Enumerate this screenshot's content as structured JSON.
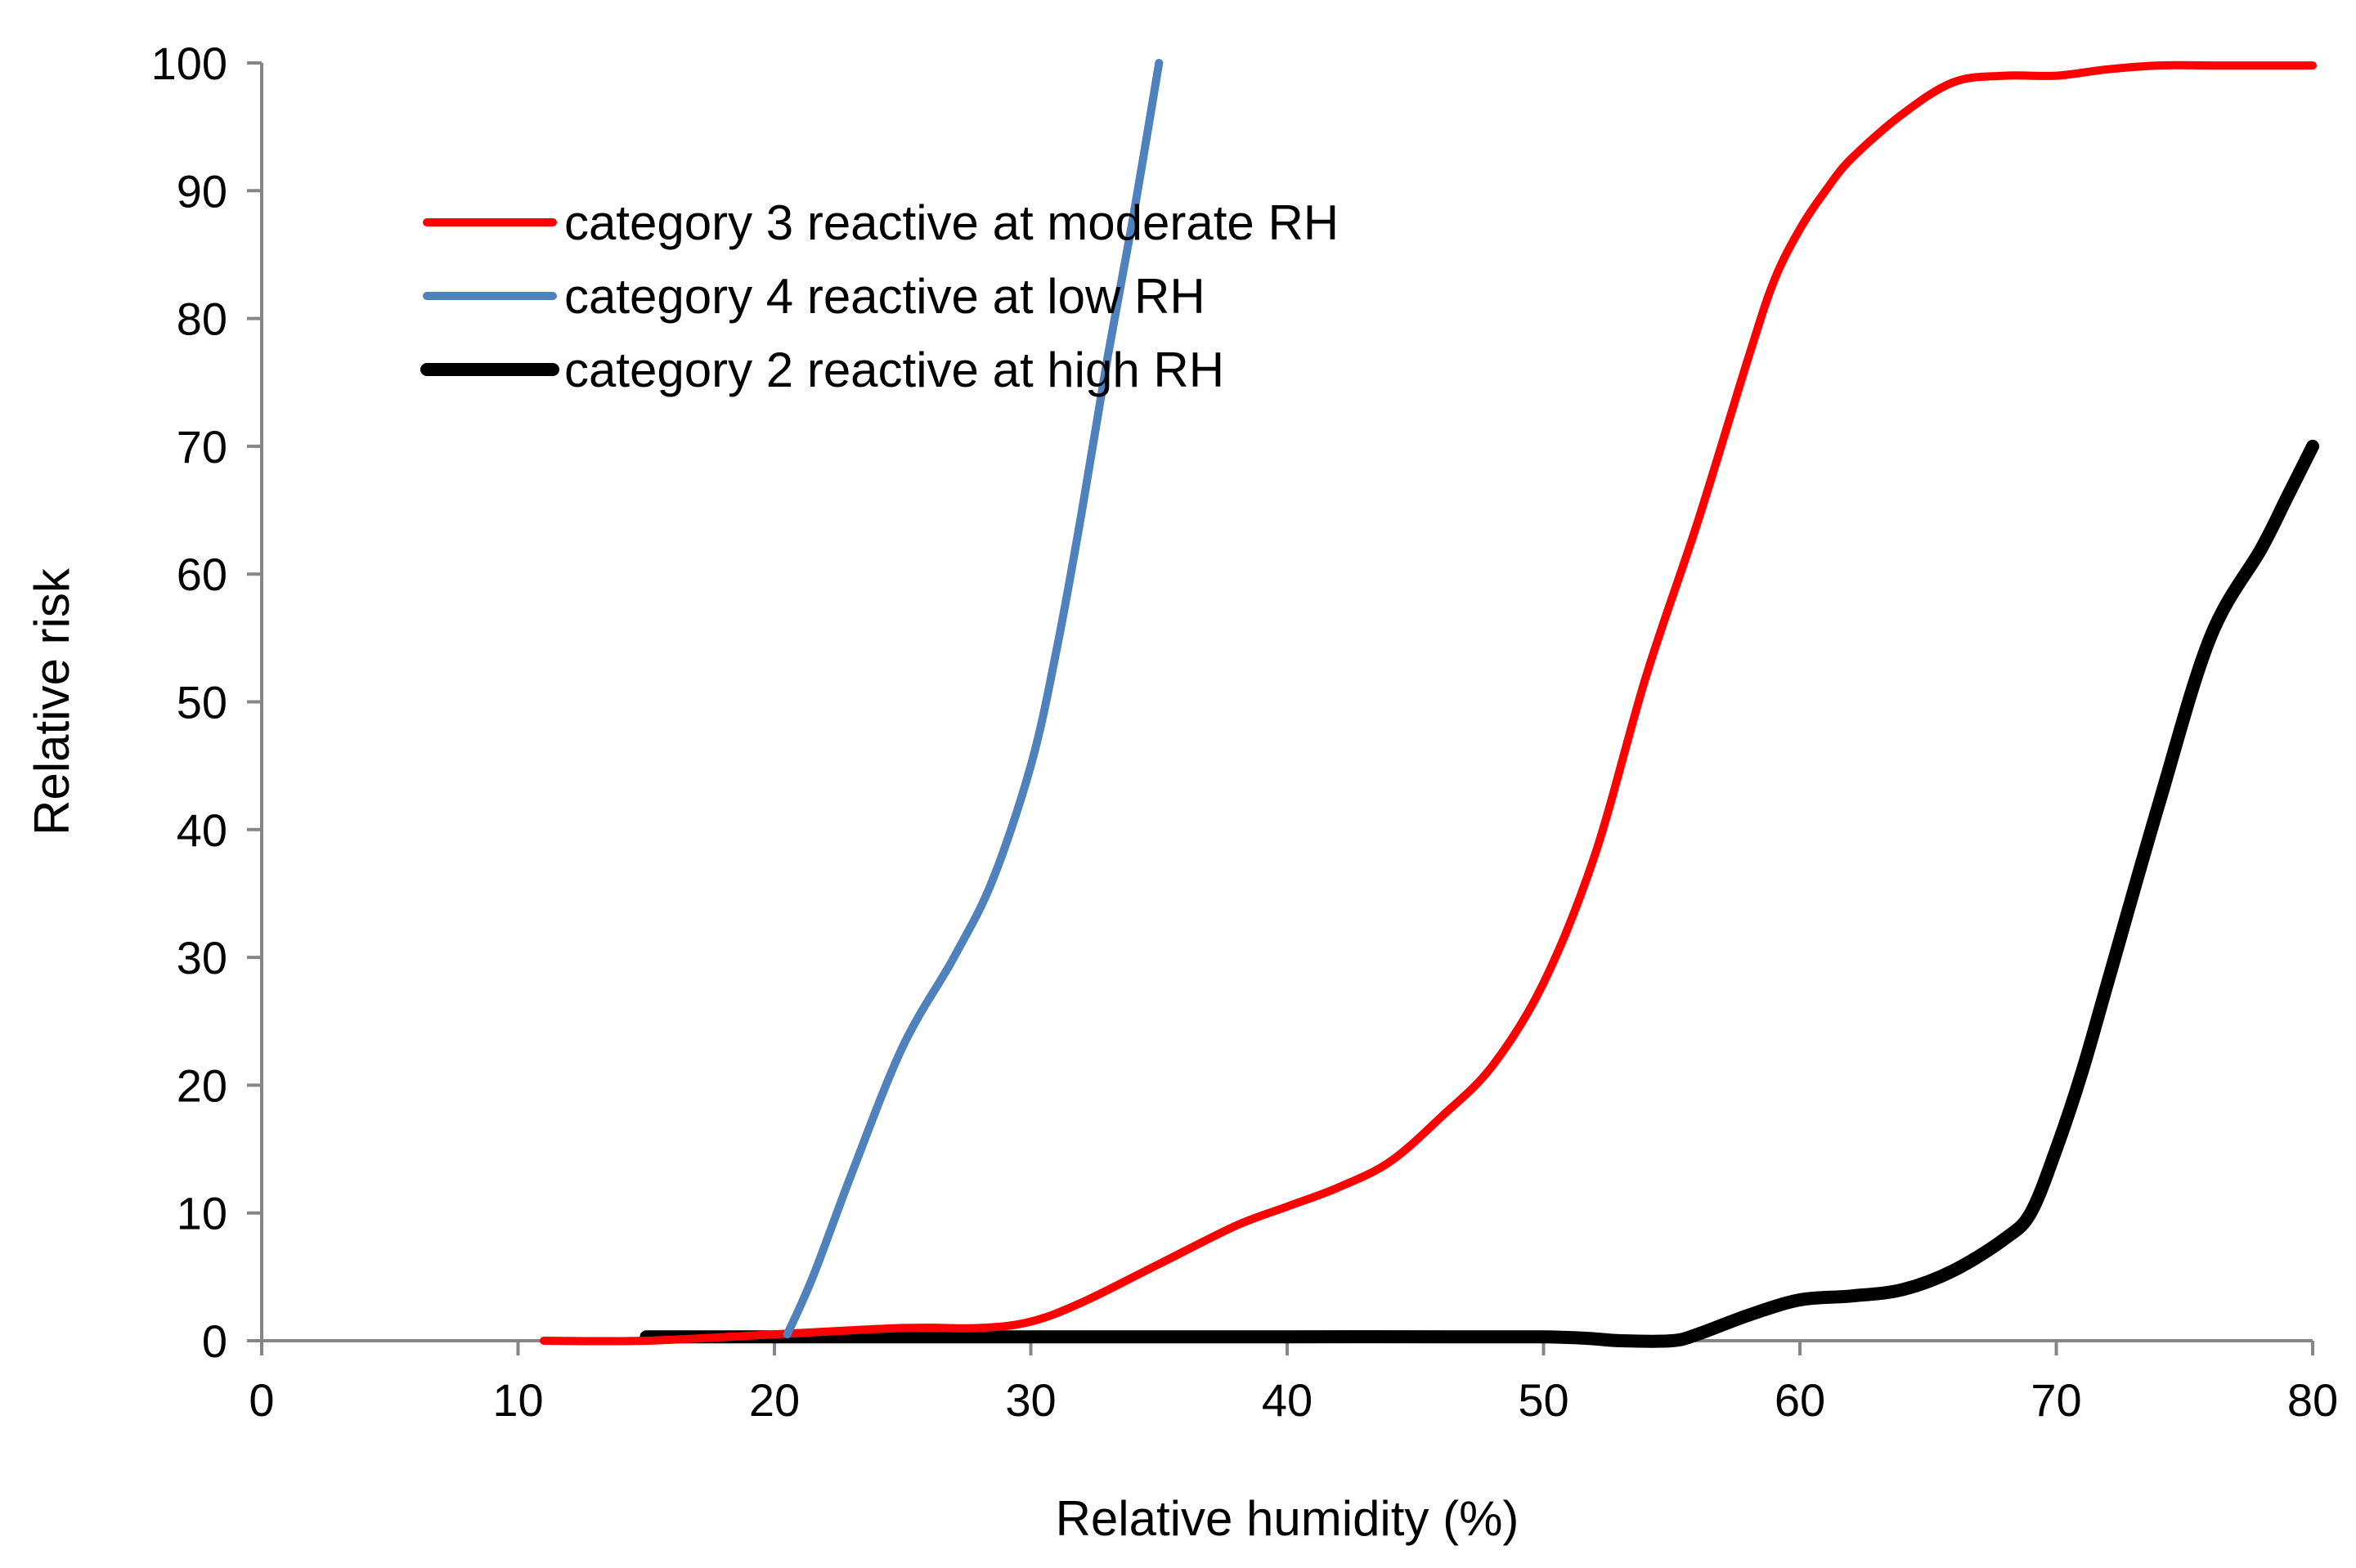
{
  "chart_data": {
    "type": "line",
    "title": "",
    "xlabel": "Relative humidity (%)",
    "ylabel": "Relative risk",
    "xlim": [
      0,
      80
    ],
    "ylim": [
      0,
      100
    ],
    "xticks": [
      0,
      10,
      20,
      30,
      40,
      50,
      60,
      70,
      80
    ],
    "yticks": [
      0,
      10,
      20,
      30,
      40,
      50,
      60,
      70,
      80,
      90,
      100
    ],
    "grid": false,
    "legend_position": "top-left",
    "series": [
      {
        "name": "category 3 reactive at moderate RH",
        "color": "#ff0000",
        "x": [
          11,
          15,
          20,
          25,
          28,
          30,
          32,
          35,
          38,
          40,
          42,
          44,
          46,
          48,
          50,
          52,
          54,
          56,
          58,
          59,
          60,
          61,
          62,
          64,
          66,
          68,
          70,
          72,
          74,
          76,
          78,
          80
        ],
        "y": [
          0,
          0,
          0.5,
          1,
          1,
          1.5,
          3,
          6,
          9,
          10.5,
          12,
          14,
          17.5,
          21.5,
          28,
          38,
          52,
          64,
          77,
          83,
          87,
          90,
          92.5,
          96,
          98.5,
          99,
          99,
          99.5,
          99.8,
          99.8,
          99.8,
          99.8
        ]
      },
      {
        "name": "category 4 reactive at low RH",
        "color": "#4f81bd",
        "x": [
          20.5,
          21.5,
          23,
          25,
          27,
          28.5,
          30,
          31,
          32,
          33,
          34,
          35
        ],
        "y": [
          0.5,
          5,
          13,
          23,
          30,
          36,
          45,
          54,
          65,
          77,
          88,
          100
        ]
      },
      {
        "name": "category 2 reactive at high RH",
        "color": "#000000",
        "x": [
          15,
          20,
          30,
          40,
          50,
          53,
          55,
          56,
          58,
          60,
          62,
          64,
          66,
          68,
          69,
          70,
          71,
          72,
          74,
          76,
          78,
          79,
          80
        ],
        "y": [
          0.3,
          0.3,
          0.3,
          0.3,
          0.3,
          0,
          0,
          0.5,
          2,
          3.2,
          3.5,
          4,
          5.5,
          8,
          10,
          15,
          21,
          28,
          42,
          55,
          62,
          66,
          70
        ]
      }
    ]
  }
}
